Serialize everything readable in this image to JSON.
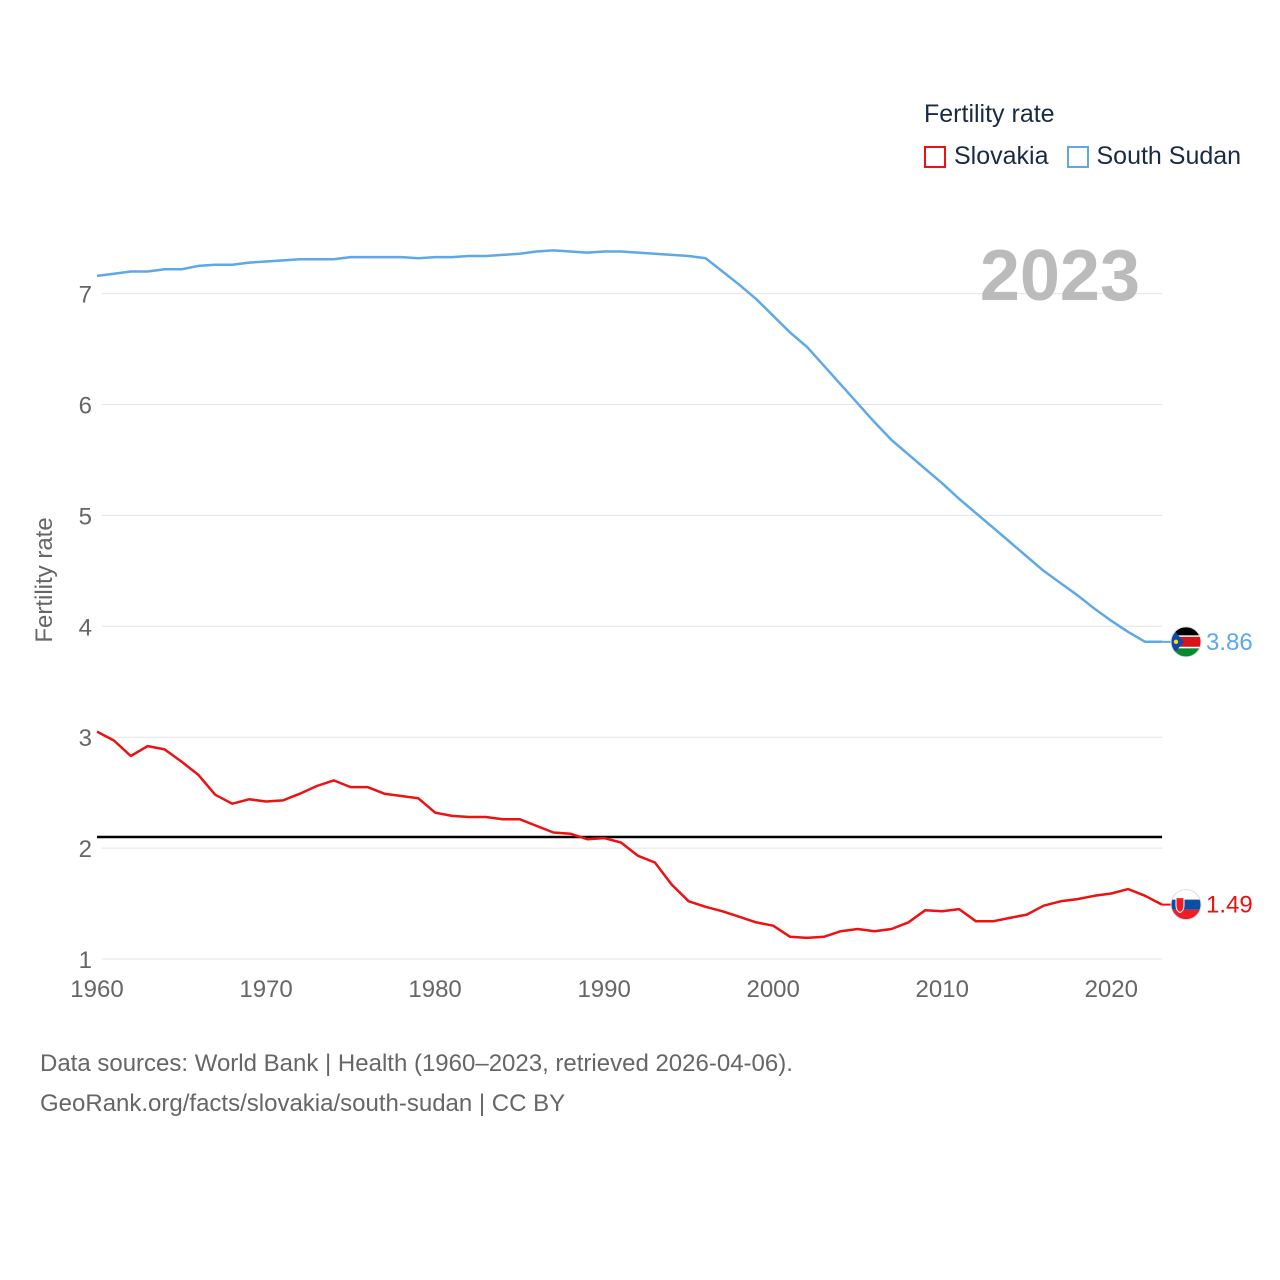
{
  "chart_data": {
    "type": "line",
    "title": "Fertility rate",
    "year_label": "2023",
    "ylabel": "Fertility rate",
    "xlabel": "",
    "xlim": [
      1960,
      2023
    ],
    "ylim": [
      0.72,
      7.98
    ],
    "x_ticks": [
      1960,
      1970,
      1980,
      1990,
      2000,
      2010,
      2020
    ],
    "y_ticks": [
      1,
      2,
      3,
      4,
      5,
      6,
      7
    ],
    "reference_line": {
      "value": 2.1,
      "color": "#000000"
    },
    "x": [
      1960,
      1961,
      1962,
      1963,
      1964,
      1965,
      1966,
      1967,
      1968,
      1969,
      1970,
      1971,
      1972,
      1973,
      1974,
      1975,
      1976,
      1977,
      1978,
      1979,
      1980,
      1981,
      1982,
      1983,
      1984,
      1985,
      1986,
      1987,
      1988,
      1989,
      1990,
      1991,
      1992,
      1993,
      1994,
      1995,
      1996,
      1997,
      1998,
      1999,
      2000,
      2001,
      2002,
      2003,
      2004,
      2005,
      2006,
      2007,
      2008,
      2009,
      2010,
      2011,
      2012,
      2013,
      2014,
      2015,
      2016,
      2017,
      2018,
      2019,
      2020,
      2021,
      2022,
      2023
    ],
    "series": [
      {
        "name": "Slovakia",
        "color": "#ee1111",
        "flag": "slovakia-flag",
        "end_label": "1.49",
        "values": [
          3.05,
          2.97,
          2.83,
          2.92,
          2.89,
          2.78,
          2.66,
          2.48,
          2.4,
          2.44,
          2.42,
          2.43,
          2.49,
          2.56,
          2.61,
          2.55,
          2.55,
          2.49,
          2.47,
          2.45,
          2.32,
          2.29,
          2.28,
          2.28,
          2.26,
          2.26,
          2.2,
          2.14,
          2.13,
          2.08,
          2.09,
          2.05,
          1.93,
          1.87,
          1.67,
          1.52,
          1.47,
          1.43,
          1.38,
          1.33,
          1.3,
          1.2,
          1.19,
          1.2,
          1.25,
          1.27,
          1.25,
          1.27,
          1.33,
          1.44,
          1.43,
          1.45,
          1.34,
          1.34,
          1.37,
          1.4,
          1.48,
          1.52,
          1.54,
          1.57,
          1.59,
          1.63,
          1.57,
          1.49
        ]
      },
      {
        "name": "South Sudan",
        "color": "#5ea8e8",
        "flag": "south-sudan-flag",
        "end_label": "3.86",
        "values": [
          7.16,
          7.18,
          7.2,
          7.2,
          7.22,
          7.22,
          7.25,
          7.26,
          7.26,
          7.28,
          7.29,
          7.3,
          7.31,
          7.31,
          7.31,
          7.33,
          7.33,
          7.33,
          7.33,
          7.32,
          7.33,
          7.33,
          7.34,
          7.34,
          7.35,
          7.36,
          7.38,
          7.39,
          7.38,
          7.37,
          7.38,
          7.38,
          7.37,
          7.36,
          7.35,
          7.34,
          7.32,
          7.2,
          7.08,
          6.95,
          6.8,
          6.65,
          6.52,
          6.35,
          6.18,
          6.01,
          5.84,
          5.68,
          5.55,
          5.42,
          5.29,
          5.15,
          5.02,
          4.89,
          4.76,
          4.63,
          4.5,
          4.39,
          4.28,
          4.16,
          4.05,
          3.95,
          3.86,
          3.86
        ]
      }
    ],
    "legend_position": "top-right"
  },
  "footer": {
    "line1": "Data sources: World Bank | Health (1960–2023, retrieved 2026-04-06).",
    "line2": "GeoRank.org/facts/slovakia/south-sudan | CC BY"
  }
}
